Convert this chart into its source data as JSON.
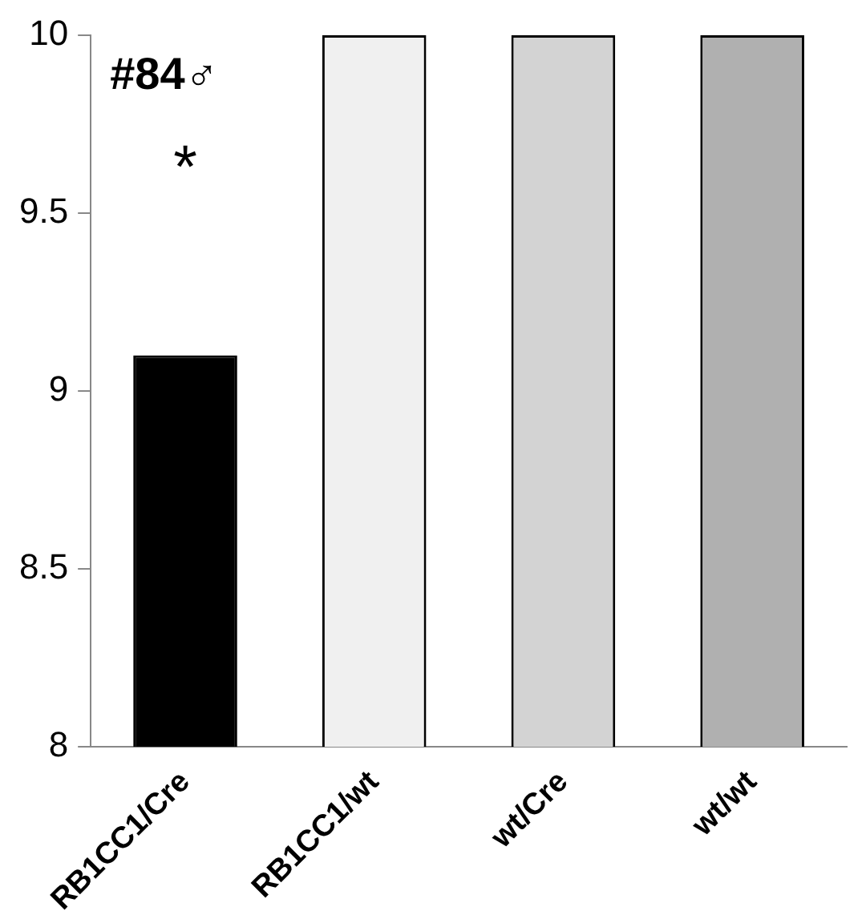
{
  "chart_data": {
    "type": "bar",
    "categories": [
      "RB1CC1/Cre",
      "RB1CC1/wt",
      "wt/Cre",
      "wt/wt"
    ],
    "values": [
      9.1,
      10,
      10,
      10
    ],
    "colors": [
      "#000000",
      "#f0f0f0",
      "#d3d3d3",
      "#b0b0b0"
    ],
    "ylim": [
      8,
      10
    ],
    "yticks": [
      8,
      8.5,
      9,
      9.5,
      10
    ],
    "grid": false,
    "legend": false,
    "annotations": [
      "#84♂",
      "*"
    ]
  }
}
